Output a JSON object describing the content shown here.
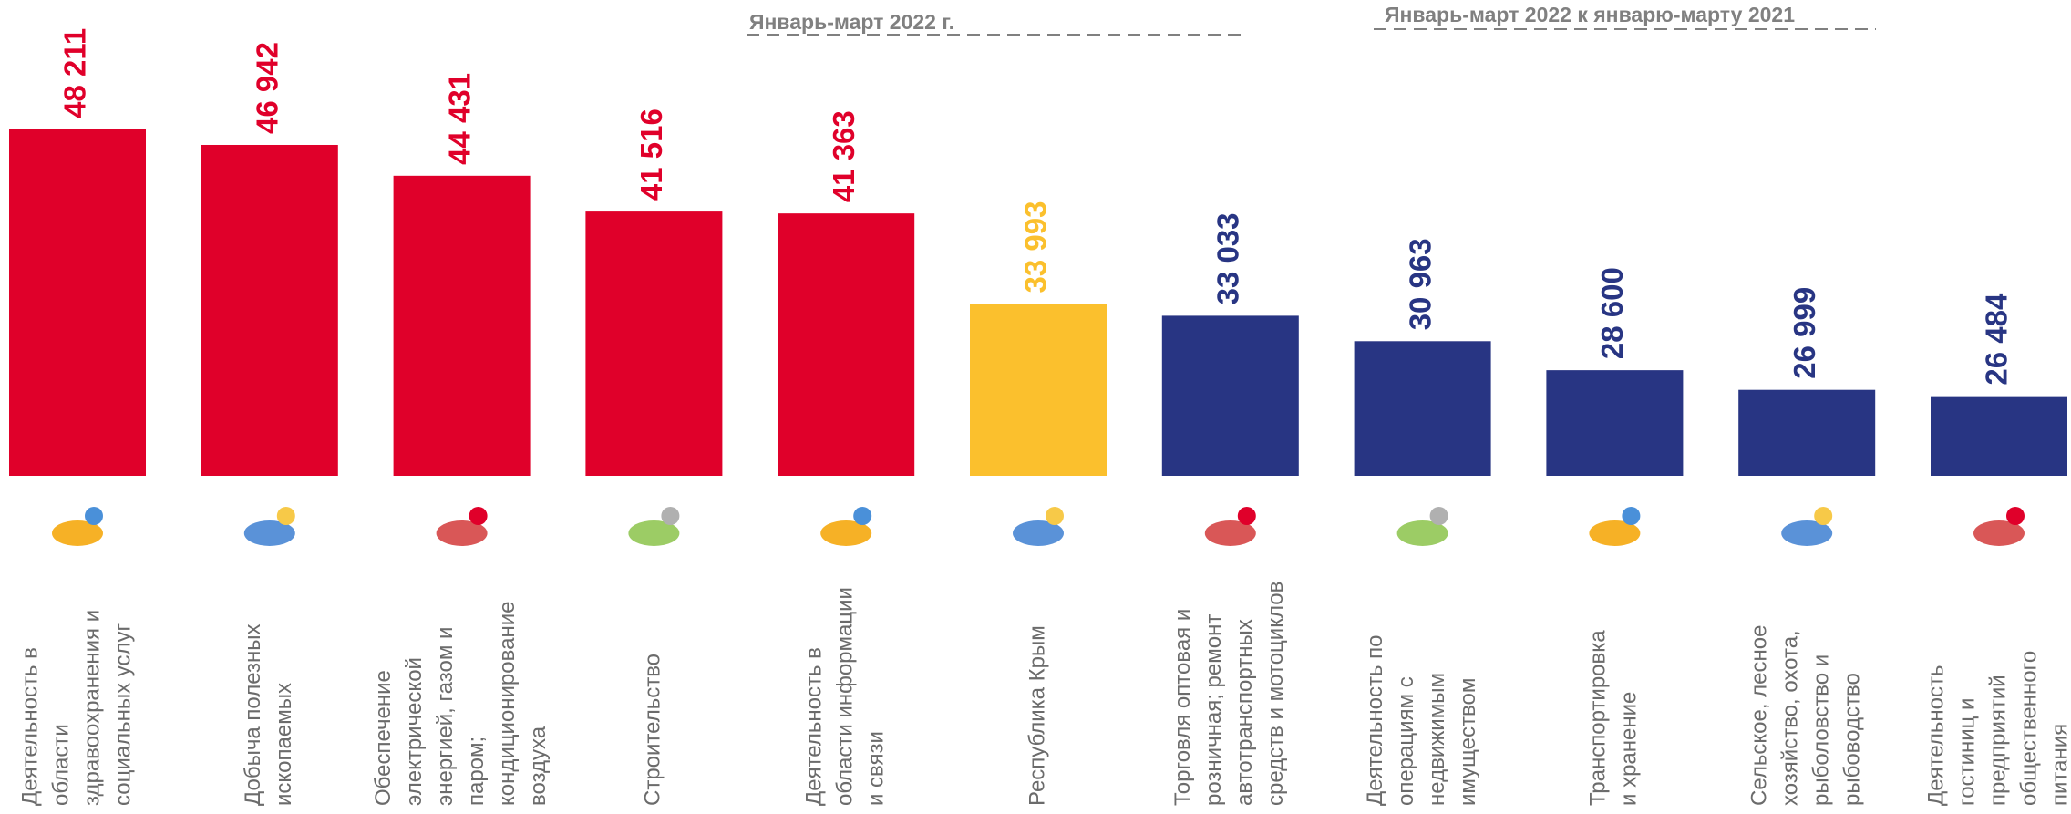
{
  "chart_data": {
    "type": "bar",
    "headers": [
      "Январь-март 2022 г.",
      "Январь-март 2022 к январю-марту 2021"
    ],
    "categories": [
      [
        "Деятельность в",
        "области",
        "здравоохранения и",
        "социальных услуг"
      ],
      [
        "Добыча полезных",
        "ископаемых"
      ],
      [
        "Обеспечение",
        "электрической",
        "энергией, газом и",
        "паром;",
        "кондиционирование",
        "воздуха"
      ],
      [
        "Строительство"
      ],
      [
        "Деятельность в",
        "области информации",
        "и связи"
      ],
      [
        "Республика Крым"
      ],
      [
        "Торговля оптовая и",
        "розничная; ремонт",
        "автотранспортных",
        "средств и мотоциклов"
      ],
      [
        "Деятельность по",
        "операциям с",
        "недвижимым",
        "имуществом"
      ],
      [
        "Транспортировка",
        "и хранение"
      ],
      [
        "Сельское, лесное",
        "хозяйство, охота,",
        "рыболовство и",
        "рыбоводство"
      ],
      [
        "Деятельность",
        "гостиниц и",
        "предприятий",
        "общественного",
        "питания"
      ]
    ],
    "values": [
      48211,
      46942,
      44431,
      41516,
      41363,
      33993,
      33033,
      30963,
      28600,
      26999,
      26484
    ],
    "value_labels": [
      "48 211",
      "46 942",
      "44 431",
      "41 516",
      "41 363",
      "33 993",
      "33 033",
      "30 963",
      "28 600",
      "26 999",
      "26 484"
    ],
    "colors": [
      "#e0002a",
      "#e0002a",
      "#e0002a",
      "#e0002a",
      "#e0002a",
      "#fbc02d",
      "#283583",
      "#283583",
      "#283583",
      "#283583",
      "#283583"
    ],
    "ylim": [
      20000,
      58000
    ]
  }
}
